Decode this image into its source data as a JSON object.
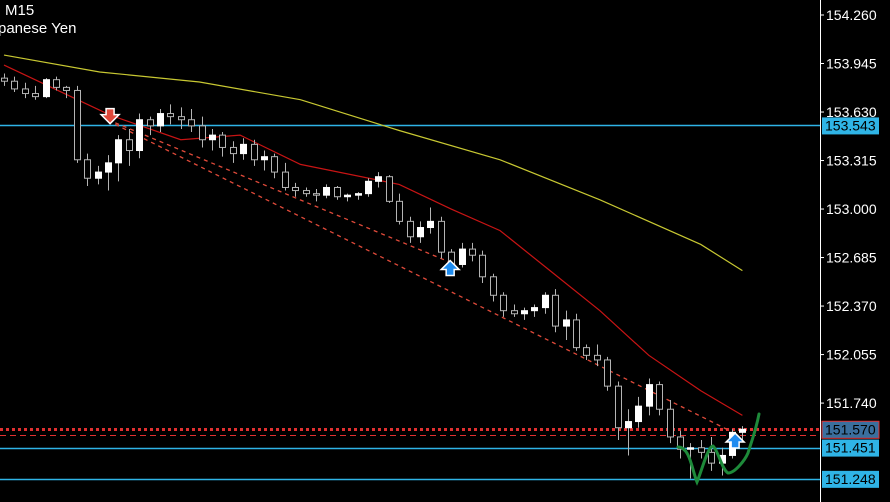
{
  "header": {
    "timeframe": "M15",
    "symbol_desc": "panese Yen"
  },
  "chart_data": {
    "type": "candlestick",
    "ylim": [
      151.17,
      154.36
    ],
    "y_ticks": [
      "154.260",
      "153.945",
      "153.630",
      "153.315",
      "153.000",
      "152.685",
      "152.370",
      "152.055",
      "151.740"
    ],
    "candles": [
      [
        153.85,
        153.88,
        153.8,
        153.83
      ],
      [
        153.83,
        153.86,
        153.76,
        153.78
      ],
      [
        153.78,
        153.82,
        153.72,
        153.75
      ],
      [
        153.75,
        153.8,
        153.71,
        153.73
      ],
      [
        153.73,
        153.85,
        153.72,
        153.84
      ],
      [
        153.84,
        153.86,
        153.77,
        153.79
      ],
      [
        153.79,
        153.8,
        153.72,
        153.77
      ],
      [
        153.77,
        153.8,
        153.3,
        153.32
      ],
      [
        153.32,
        153.36,
        153.15,
        153.2
      ],
      [
        153.2,
        153.28,
        153.16,
        153.24
      ],
      [
        153.24,
        153.35,
        153.12,
        153.3
      ],
      [
        153.3,
        153.48,
        153.18,
        153.45
      ],
      [
        153.45,
        153.52,
        153.28,
        153.38
      ],
      [
        153.38,
        153.62,
        153.33,
        153.58
      ],
      [
        153.58,
        153.6,
        153.48,
        153.54
      ],
      [
        153.54,
        153.65,
        153.5,
        153.62
      ],
      [
        153.62,
        153.68,
        153.55,
        153.6
      ],
      [
        153.6,
        153.66,
        153.52,
        153.58
      ],
      [
        153.58,
        153.65,
        153.5,
        153.54
      ],
      [
        153.54,
        153.6,
        153.4,
        153.45
      ],
      [
        153.45,
        153.52,
        153.38,
        153.48
      ],
      [
        153.48,
        153.5,
        153.34,
        153.4
      ],
      [
        153.4,
        153.44,
        153.3,
        153.36
      ],
      [
        153.36,
        153.46,
        153.32,
        153.42
      ],
      [
        153.42,
        153.45,
        153.28,
        153.32
      ],
      [
        153.32,
        153.38,
        153.25,
        153.34
      ],
      [
        153.34,
        153.36,
        153.2,
        153.24
      ],
      [
        153.24,
        153.3,
        153.12,
        153.14
      ],
      [
        153.14,
        153.17,
        153.08,
        153.12
      ],
      [
        153.12,
        153.14,
        153.08,
        153.1
      ],
      [
        153.1,
        153.13,
        153.05,
        153.09
      ],
      [
        153.09,
        153.16,
        153.07,
        153.14
      ],
      [
        153.14,
        153.15,
        153.06,
        153.08
      ],
      [
        153.08,
        153.1,
        153.05,
        153.09
      ],
      [
        153.09,
        153.11,
        153.06,
        153.1
      ],
      [
        153.1,
        153.2,
        153.08,
        153.18
      ],
      [
        153.18,
        153.24,
        153.14,
        153.21
      ],
      [
        153.21,
        153.22,
        153.04,
        153.05
      ],
      [
        153.05,
        153.1,
        152.9,
        152.92
      ],
      [
        152.92,
        152.95,
        152.78,
        152.82
      ],
      [
        152.82,
        152.92,
        152.78,
        152.88
      ],
      [
        152.88,
        153.01,
        152.84,
        152.92
      ],
      [
        152.92,
        152.95,
        152.68,
        152.72
      ],
      [
        152.72,
        152.74,
        152.6,
        152.64
      ],
      [
        152.64,
        152.78,
        152.62,
        152.74
      ],
      [
        152.74,
        152.78,
        152.66,
        152.7
      ],
      [
        152.7,
        152.73,
        152.52,
        152.56
      ],
      [
        152.56,
        152.58,
        152.4,
        152.44
      ],
      [
        152.44,
        152.46,
        152.3,
        152.34
      ],
      [
        152.34,
        152.38,
        152.3,
        152.32
      ],
      [
        152.32,
        152.36,
        152.28,
        152.34
      ],
      [
        152.34,
        152.38,
        152.3,
        152.36
      ],
      [
        152.36,
        152.46,
        152.32,
        152.44
      ],
      [
        152.44,
        152.48,
        152.2,
        152.24
      ],
      [
        152.24,
        152.34,
        152.15,
        152.28
      ],
      [
        152.28,
        152.32,
        152.08,
        152.1
      ],
      [
        152.1,
        152.12,
        152.02,
        152.05
      ],
      [
        152.05,
        152.12,
        151.98,
        152.02
      ],
      [
        152.02,
        152.04,
        151.82,
        151.85
      ],
      [
        151.85,
        151.88,
        151.5,
        151.58
      ],
      [
        151.58,
        151.7,
        151.4,
        151.62
      ],
      [
        151.62,
        151.78,
        151.58,
        151.72
      ],
      [
        151.72,
        151.9,
        151.66,
        151.86
      ],
      [
        151.86,
        151.88,
        151.66,
        151.7
      ],
      [
        151.7,
        151.76,
        151.48,
        151.52
      ],
      [
        151.52,
        151.56,
        151.38,
        151.44
      ],
      [
        151.44,
        151.48,
        151.25,
        151.45
      ],
      [
        151.45,
        151.5,
        151.38,
        151.42
      ],
      [
        151.42,
        151.52,
        151.3,
        151.35
      ],
      [
        151.35,
        151.45,
        151.27,
        151.4
      ],
      [
        151.4,
        151.57,
        151.38,
        151.55
      ],
      [
        151.55,
        151.59,
        151.5,
        151.57
      ]
    ],
    "ma_fast": {
      "color": "#c81414",
      "points": [
        [
          0,
          153.935
        ],
        [
          10.2,
          153.61
        ],
        [
          17,
          153.45
        ],
        [
          22.7,
          153.48
        ],
        [
          28.5,
          153.29
        ],
        [
          38,
          153.16
        ],
        [
          43,
          153.0
        ],
        [
          47.7,
          152.86
        ],
        [
          52.5,
          152.6
        ],
        [
          57.3,
          152.34
        ],
        [
          62,
          152.05
        ],
        [
          67,
          151.82
        ],
        [
          71,
          151.66
        ]
      ]
    },
    "ma_slow": {
      "color": "#c8c832",
      "points": [
        [
          0,
          154.0
        ],
        [
          9.2,
          153.89
        ],
        [
          18.8,
          153.825
        ],
        [
          28.5,
          153.71
        ],
        [
          38,
          153.51
        ],
        [
          47.7,
          153.32
        ],
        [
          57.3,
          153.06
        ],
        [
          67,
          152.77
        ],
        [
          71,
          152.6
        ]
      ]
    },
    "horizontal_levels": [
      {
        "label": "153.543",
        "value": 153.543,
        "color": "#2fb4e6",
        "style": "solid"
      },
      {
        "label": "151.451",
        "value": 151.451,
        "color": "#2fb4e6",
        "style": "solid"
      },
      {
        "label": "151.248",
        "value": 151.248,
        "color": "#2fb4e6",
        "style": "solid"
      },
      {
        "label": "151.570",
        "value": 151.57,
        "color": "#e03030",
        "style": "dotted",
        "box_color": "#3a6f9e"
      }
    ],
    "ask_line": {
      "value": 151.53,
      "color": "#e03030",
      "style": "dashed"
    },
    "trend_lines": [
      {
        "from": [
          10.7,
          153.56
        ],
        "to": [
          43.4,
          152.64
        ],
        "color": "#e04a3a"
      },
      {
        "from": [
          10.7,
          153.55
        ],
        "to": [
          69.5,
          151.57
        ],
        "color": "#e04a3a"
      }
    ],
    "arrows": [
      {
        "type": "sell",
        "index": 10.2,
        "price": 153.6,
        "color": "#e0483a"
      },
      {
        "type": "buy",
        "index": 42.9,
        "price": 152.62,
        "color": "#1e8cf0"
      },
      {
        "type": "buy",
        "index": 70.3,
        "price": 151.5,
        "color": "#1e8cf0"
      }
    ],
    "colors": {
      "bull": "#ffffff",
      "bear": "#000000",
      "outline": "#b4b4b4",
      "background": "#000000"
    }
  }
}
